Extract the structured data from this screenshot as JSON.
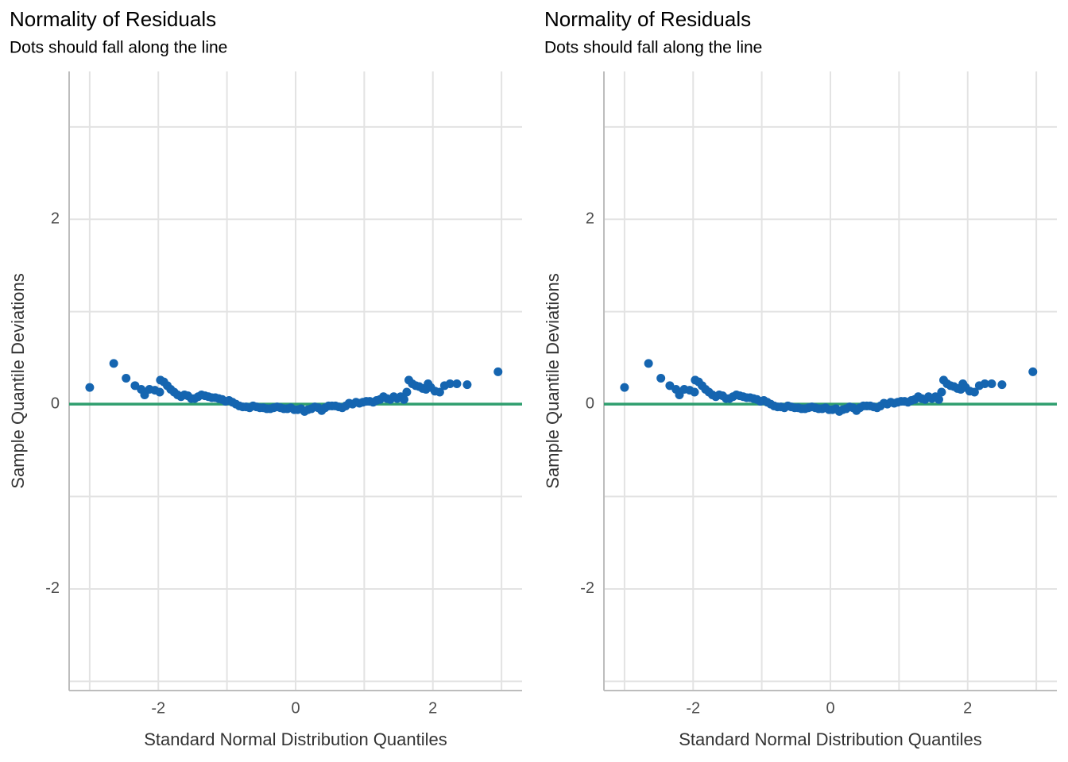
{
  "chart_data": [
    {
      "type": "scatter",
      "title": "Normality of Residuals",
      "subtitle": "Dots should fall along the line",
      "x_label": "Standard Normal Distribution Quantiles",
      "y_label": "Sample Quantile Deviations",
      "xlim": [
        -3.3,
        3.3
      ],
      "ylim": [
        -3.1,
        3.6
      ],
      "xticks": [
        -2,
        0,
        2
      ],
      "yticks": [
        -2,
        0,
        2
      ],
      "minor_xticks": [
        -3,
        -1,
        1,
        3
      ],
      "minor_yticks": [
        -3,
        -1,
        1,
        3
      ],
      "grid": true,
      "reference_line": 0,
      "reference_color": "#2e9e6e",
      "color": "#1565b0",
      "x": [
        -3.0,
        -2.65,
        -2.47,
        -2.34,
        -2.25,
        -2.2,
        -2.13,
        -2.05,
        -1.98,
        -1.97,
        -1.92,
        -1.87,
        -1.82,
        -1.77,
        -1.72,
        -1.67,
        -1.62,
        -1.57,
        -1.52,
        -1.47,
        -1.42,
        -1.37,
        -1.32,
        -1.27,
        -1.22,
        -1.17,
        -1.12,
        -1.07,
        -1.02,
        -0.97,
        -0.92,
        -0.87,
        -0.82,
        -0.77,
        -0.72,
        -0.67,
        -0.62,
        -0.57,
        -0.52,
        -0.47,
        -0.42,
        -0.37,
        -0.32,
        -0.27,
        -0.22,
        -0.17,
        -0.12,
        -0.07,
        -0.02,
        0.03,
        0.08,
        0.13,
        0.18,
        0.23,
        0.28,
        0.33,
        0.38,
        0.43,
        0.48,
        0.53,
        0.58,
        0.63,
        0.68,
        0.73,
        0.78,
        0.83,
        0.88,
        0.93,
        0.98,
        1.03,
        1.08,
        1.13,
        1.18,
        1.23,
        1.28,
        1.33,
        1.38,
        1.43,
        1.48,
        1.53,
        1.58,
        1.62,
        1.65,
        1.7,
        1.75,
        1.8,
        1.85,
        1.9,
        1.93,
        1.97,
        2.03,
        2.1,
        2.17,
        2.25,
        2.35,
        2.5,
        2.95
      ],
      "values": [
        0.18,
        0.44,
        0.28,
        0.2,
        0.16,
        0.1,
        0.16,
        0.15,
        0.13,
        0.26,
        0.24,
        0.2,
        0.16,
        0.13,
        0.1,
        0.08,
        0.1,
        0.09,
        0.06,
        0.06,
        0.08,
        0.1,
        0.09,
        0.08,
        0.07,
        0.07,
        0.06,
        0.05,
        0.03,
        0.04,
        0.02,
        0.0,
        -0.02,
        -0.03,
        -0.03,
        -0.04,
        -0.02,
        -0.03,
        -0.04,
        -0.04,
        -0.05,
        -0.05,
        -0.04,
        -0.03,
        -0.04,
        -0.05,
        -0.05,
        -0.04,
        -0.06,
        -0.06,
        -0.05,
        -0.08,
        -0.06,
        -0.05,
        -0.03,
        -0.04,
        -0.07,
        -0.04,
        -0.02,
        -0.02,
        -0.02,
        -0.03,
        -0.04,
        -0.02,
        0.01,
        0.0,
        0.02,
        0.01,
        0.02,
        0.03,
        0.03,
        0.02,
        0.04,
        0.05,
        0.08,
        0.06,
        0.05,
        0.08,
        0.06,
        0.08,
        0.05,
        0.13,
        0.26,
        0.22,
        0.2,
        0.19,
        0.17,
        0.16,
        0.22,
        0.18,
        0.14,
        0.13,
        0.2,
        0.22,
        0.22,
        0.21,
        0.35
      ]
    },
    {
      "type": "scatter",
      "title": "Normality of Residuals",
      "subtitle": "Dots should fall along the line",
      "x_label": "Standard Normal Distribution Quantiles",
      "y_label": "Sample Quantile Deviations",
      "xlim": [
        -3.3,
        3.3
      ],
      "ylim": [
        -3.1,
        3.6
      ],
      "xticks": [
        -2,
        0,
        2
      ],
      "yticks": [
        -2,
        0,
        2
      ],
      "minor_xticks": [
        -3,
        -1,
        1,
        3
      ],
      "minor_yticks": [
        -3,
        -1,
        1,
        3
      ],
      "grid": true,
      "reference_line": 0,
      "reference_color": "#2e9e6e",
      "color": "#1565b0",
      "x": [
        -3.0,
        -2.65,
        -2.47,
        -2.34,
        -2.25,
        -2.2,
        -2.13,
        -2.05,
        -1.98,
        -1.97,
        -1.92,
        -1.87,
        -1.82,
        -1.77,
        -1.72,
        -1.67,
        -1.62,
        -1.57,
        -1.52,
        -1.47,
        -1.42,
        -1.37,
        -1.32,
        -1.27,
        -1.22,
        -1.17,
        -1.12,
        -1.07,
        -1.02,
        -0.97,
        -0.92,
        -0.87,
        -0.82,
        -0.77,
        -0.72,
        -0.67,
        -0.62,
        -0.57,
        -0.52,
        -0.47,
        -0.42,
        -0.37,
        -0.32,
        -0.27,
        -0.22,
        -0.17,
        -0.12,
        -0.07,
        -0.02,
        0.03,
        0.08,
        0.13,
        0.18,
        0.23,
        0.28,
        0.33,
        0.38,
        0.43,
        0.48,
        0.53,
        0.58,
        0.63,
        0.68,
        0.73,
        0.78,
        0.83,
        0.88,
        0.93,
        0.98,
        1.03,
        1.08,
        1.13,
        1.18,
        1.23,
        1.28,
        1.33,
        1.38,
        1.43,
        1.48,
        1.53,
        1.58,
        1.62,
        1.65,
        1.7,
        1.75,
        1.8,
        1.85,
        1.9,
        1.93,
        1.97,
        2.03,
        2.1,
        2.17,
        2.25,
        2.35,
        2.5,
        2.95
      ],
      "values": [
        0.18,
        0.44,
        0.28,
        0.2,
        0.16,
        0.1,
        0.16,
        0.15,
        0.13,
        0.26,
        0.24,
        0.2,
        0.16,
        0.13,
        0.1,
        0.08,
        0.1,
        0.09,
        0.06,
        0.06,
        0.08,
        0.1,
        0.09,
        0.08,
        0.07,
        0.07,
        0.06,
        0.05,
        0.03,
        0.04,
        0.02,
        0.0,
        -0.02,
        -0.03,
        -0.03,
        -0.04,
        -0.02,
        -0.03,
        -0.04,
        -0.04,
        -0.05,
        -0.05,
        -0.04,
        -0.03,
        -0.04,
        -0.05,
        -0.05,
        -0.04,
        -0.06,
        -0.06,
        -0.05,
        -0.08,
        -0.06,
        -0.05,
        -0.03,
        -0.04,
        -0.07,
        -0.04,
        -0.02,
        -0.02,
        -0.02,
        -0.03,
        -0.04,
        -0.02,
        0.01,
        0.0,
        0.02,
        0.01,
        0.02,
        0.03,
        0.03,
        0.02,
        0.04,
        0.05,
        0.08,
        0.06,
        0.05,
        0.08,
        0.06,
        0.08,
        0.05,
        0.13,
        0.26,
        0.22,
        0.2,
        0.19,
        0.17,
        0.16,
        0.22,
        0.18,
        0.14,
        0.13,
        0.2,
        0.22,
        0.22,
        0.21,
        0.35
      ]
    }
  ]
}
